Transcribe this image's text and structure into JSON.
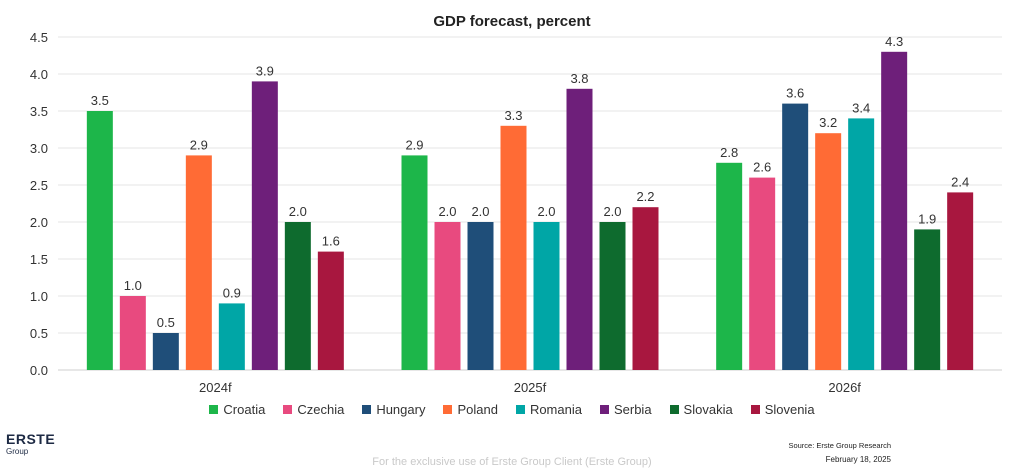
{
  "chart_data": {
    "type": "bar",
    "title": "GDP forecast, percent",
    "categories": [
      "2024f",
      "2025f",
      "2026f"
    ],
    "series": [
      {
        "name": "Croatia",
        "color": "#1db64a",
        "values": [
          3.5,
          2.9,
          2.8
        ]
      },
      {
        "name": "Czechia",
        "color": "#e84a7f",
        "values": [
          1.0,
          2.0,
          2.6
        ]
      },
      {
        "name": "Hungary",
        "color": "#1f4e79",
        "values": [
          0.5,
          2.0,
          3.6
        ]
      },
      {
        "name": "Poland",
        "color": "#ff6b35",
        "values": [
          2.9,
          3.3,
          3.2
        ]
      },
      {
        "name": "Romania",
        "color": "#00a6a6",
        "values": [
          0.9,
          2.0,
          3.4
        ]
      },
      {
        "name": "Serbia",
        "color": "#6e1f7a",
        "values": [
          3.9,
          3.8,
          4.3
        ]
      },
      {
        "name": "Slovakia",
        "color": "#0e6b2e",
        "values": [
          2.0,
          2.0,
          1.9
        ]
      },
      {
        "name": "Slovenia",
        "color": "#a8173f",
        "values": [
          1.6,
          2.2,
          2.4
        ]
      }
    ],
    "ylim": [
      0,
      4.5
    ],
    "yticks": [
      "0.0",
      "0.5",
      "1.0",
      "1.5",
      "2.0",
      "2.5",
      "3.0",
      "3.5",
      "4.0",
      "4.5"
    ],
    "grid": true,
    "legend": "bottom"
  },
  "footer": {
    "logo": "ERSTE",
    "logo_sub": "Group",
    "source": "Source: Erste Group Research",
    "date": "February 18, 2025",
    "watermark": "For the exclusive use of Erste Group Client  (Erste Group)"
  }
}
